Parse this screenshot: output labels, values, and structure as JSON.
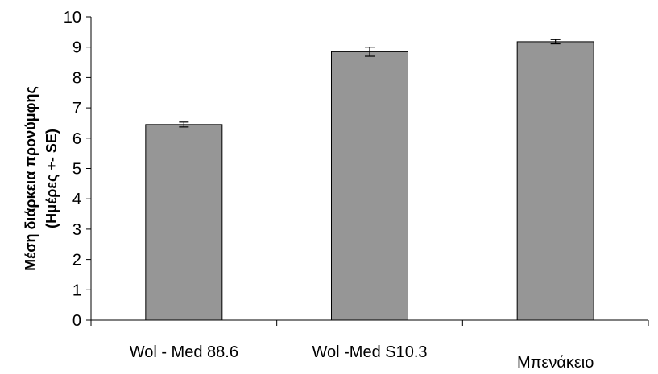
{
  "chart_data": {
    "type": "bar",
    "title": "",
    "xlabel": "",
    "ylabel": [
      "Μέση διάρκεια προνύμφης",
      "(Ημέρες +- SE)"
    ],
    "categories": [
      "Wol - Med 88.6",
      "Wol -Med S10.3",
      "Μπενάκειο"
    ],
    "values": [
      6.45,
      8.85,
      9.18
    ],
    "errors": [
      0.08,
      0.15,
      0.07
    ],
    "ylim": [
      0,
      10
    ],
    "yticks": [
      0,
      1,
      2,
      3,
      4,
      5,
      6,
      7,
      8,
      9,
      10
    ],
    "grid": false,
    "legend": "none",
    "bar_color": "#969696",
    "bar_edge_color": "#000000"
  }
}
